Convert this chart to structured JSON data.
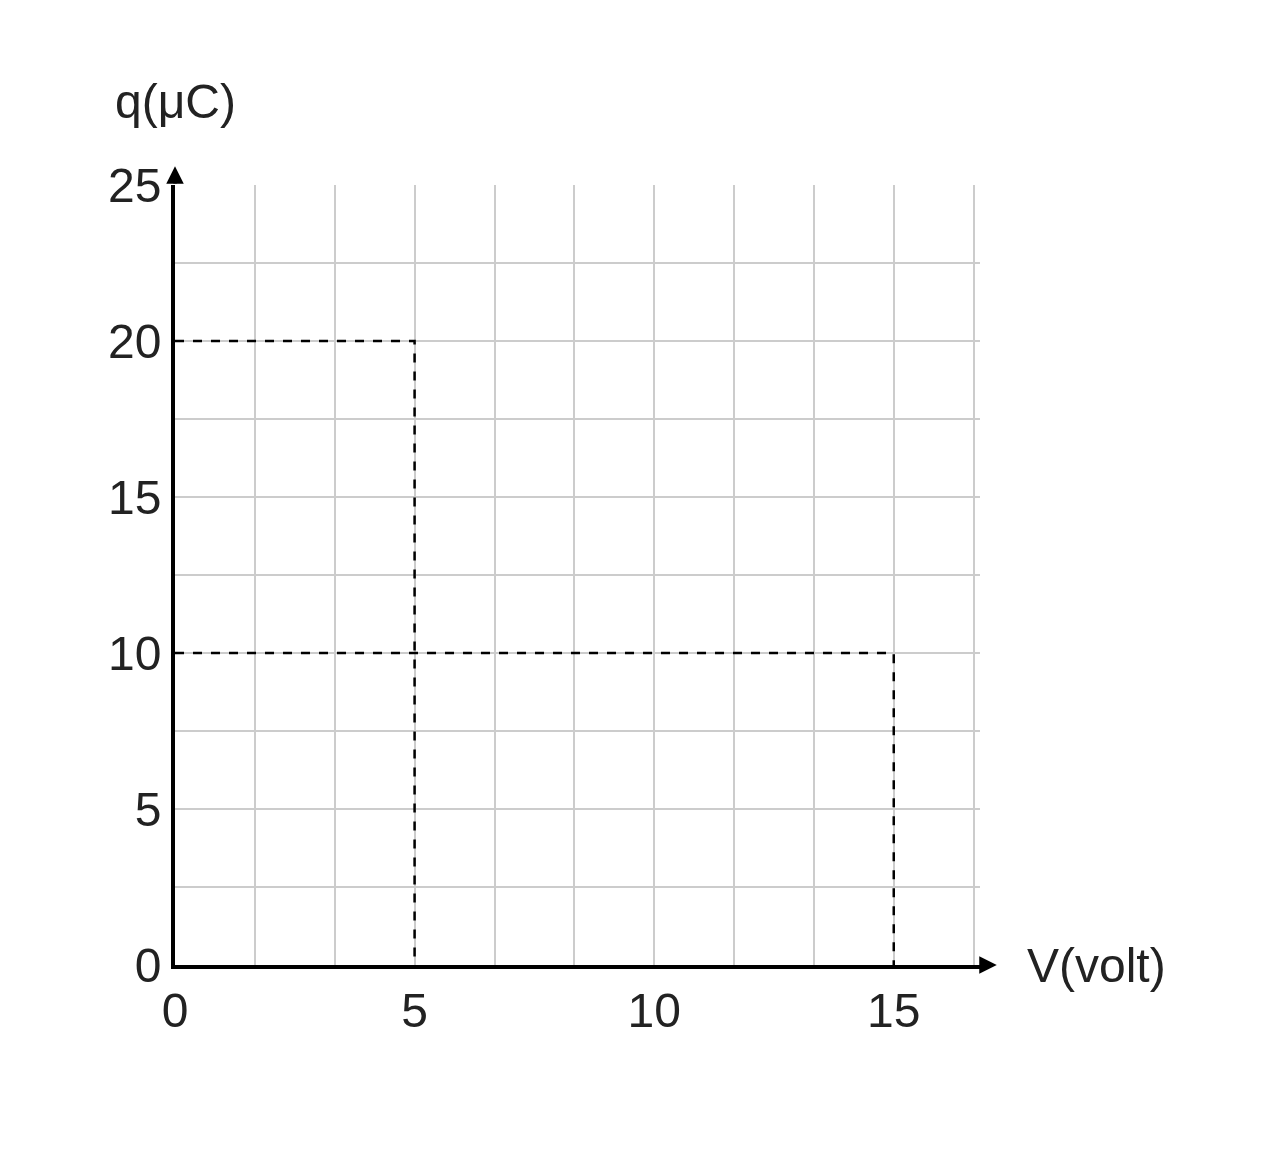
{
  "chart_data": {
    "type": "line",
    "xlabel": "V(volt)",
    "ylabel": "q(μC)",
    "series": [
      {
        "x": [
          0,
          5,
          5
        ],
        "values": [
          20,
          20,
          0
        ],
        "color": "#000000"
      },
      {
        "x": [
          0,
          15,
          15
        ],
        "values": [
          10,
          10,
          0
        ],
        "color": "#000000"
      }
    ],
    "line_style": "dashed",
    "marker": "none",
    "grid": true,
    "xlim": [
      0,
      16.8
    ],
    "ylim": [
      0,
      25
    ],
    "xticks": [
      0,
      {
        "value": 1.67,
        "label": null
      },
      {
        "value": 3.33,
        "label": null
      },
      5,
      {
        "value": 6.67,
        "label": null
      },
      {
        "value": 8.33,
        "label": null
      },
      10,
      {
        "value": 11.67,
        "label": null
      },
      {
        "value": 13.33,
        "label": null
      },
      15,
      {
        "value": 16.67,
        "label": null
      }
    ],
    "yticks": [
      0,
      {
        "value": 2.5,
        "label": null
      },
      5,
      {
        "value": 7.5,
        "label": null
      },
      10,
      {
        "value": 12.5,
        "label": null
      },
      15,
      {
        "value": 17.5,
        "label": null
      },
      20,
      {
        "value": 22.5,
        "label": null
      },
      25
    ]
  }
}
